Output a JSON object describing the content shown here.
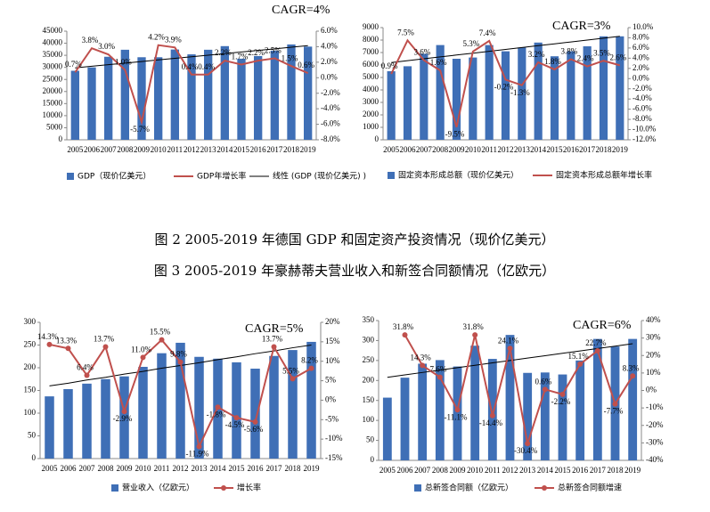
{
  "captions": [
    "图 2 2005-2019 年德国 GDP 和固定资产投资情况（现价亿美元）",
    "图 3 2005-2019 年豪赫蒂夫营业收入和新签合同额情况（亿欧元）"
  ],
  "chart_data": [
    {
      "type": "combo",
      "annotation": "CAGR=4%",
      "categories": [
        "2005",
        "2006",
        "2007",
        "2008",
        "2009",
        "2010",
        "2011",
        "2012",
        "2013",
        "2014",
        "2015",
        "2016",
        "2017",
        "2018",
        "2019"
      ],
      "ylim": [
        0,
        45000
      ],
      "yticks": [
        0,
        5000,
        10000,
        15000,
        20000,
        25000,
        30000,
        35000,
        40000,
        45000
      ],
      "y2lim": [
        -8,
        6
      ],
      "y2ticks": [
        {
          "value": -8,
          "label": "-8.0%"
        },
        {
          "value": -6,
          "label": "-6.0%"
        },
        {
          "value": -4,
          "label": "-4.0%"
        },
        {
          "value": -2,
          "label": "-2.0%"
        },
        {
          "value": 0,
          "label": "0.0%"
        },
        {
          "value": 2,
          "label": "2.0%"
        },
        {
          "value": 4,
          "label": "4.0%"
        },
        {
          "value": 6,
          "label": "6.0%"
        }
      ],
      "markers": false,
      "series": [
        {
          "name": "GDP（现价亿美元）",
          "type": "bar",
          "color": "#3f6fb6",
          "values": [
            28600,
            30000,
            34400,
            37300,
            34200,
            34200,
            37400,
            35400,
            37300,
            38800,
            33600,
            34700,
            36900,
            39500,
            38600
          ]
        },
        {
          "name": "GDP年增长率",
          "type": "line",
          "axis": "y2",
          "color": "#c0504d",
          "values": [
            0.7,
            3.8,
            3.0,
            1.0,
            -5.7,
            4.2,
            3.9,
            0.4,
            0.4,
            2.2,
            1.7,
            2.2,
            2.5,
            1.5,
            0.6
          ],
          "value_labels": [
            "0.7%",
            "3.8%",
            "3.0%",
            "1.0%",
            "-5.7%",
            "4.2%",
            "3.9%",
            "0.4%",
            "0.4%",
            "2.2%",
            "1.7%",
            "2.2%",
            "2.5%",
            "1.5%",
            "0.6%"
          ]
        }
      ],
      "trendline": {
        "name": "线性 (GDP (现价亿美元) )",
        "color": "#000000",
        "values": [
          29800,
          30460,
          31110,
          31770,
          32430,
          33090,
          33740,
          34400,
          35060,
          35710,
          36370,
          37030,
          37690,
          38340,
          39000
        ]
      }
    },
    {
      "type": "combo",
      "annotation": "CAGR=3%",
      "categories": [
        "2005",
        "2006",
        "2007",
        "2008",
        "2009",
        "2010",
        "2011",
        "2012",
        "2013",
        "2014",
        "2015",
        "2016",
        "2017",
        "2018",
        "2019"
      ],
      "ylim": [
        0,
        9000
      ],
      "yticks": [
        0,
        1000,
        2000,
        3000,
        4000,
        5000,
        6000,
        7000,
        8000,
        9000
      ],
      "y2lim": [
        -12,
        10
      ],
      "y2ticks": [
        {
          "value": -12,
          "label": "-12.0%"
        },
        {
          "value": -10,
          "label": "-10.0%"
        },
        {
          "value": -8,
          "label": "-8.0%"
        },
        {
          "value": -6,
          "label": "-6.0%"
        },
        {
          "value": -4,
          "label": "-4.0%"
        },
        {
          "value": -2,
          "label": "-2.0%"
        },
        {
          "value": 0,
          "label": "0.0%"
        },
        {
          "value": 2,
          "label": "2.0%"
        },
        {
          "value": 4,
          "label": "4.0%"
        },
        {
          "value": 6,
          "label": "6.0%"
        },
        {
          "value": 8,
          "label": "8.0%"
        },
        {
          "value": 10,
          "label": "10.0%"
        }
      ],
      "markers": false,
      "series": [
        {
          "name": "固定资本形成总额（现价亿美元）",
          "type": "bar",
          "color": "#3f6fb6",
          "values": [
            5500,
            5900,
            6900,
            7600,
            6500,
            6600,
            7600,
            7100,
            7400,
            7800,
            6700,
            7100,
            7500,
            8300,
            8300
          ]
        },
        {
          "name": "固定资本形成总额年增长率",
          "type": "line",
          "axis": "y2",
          "color": "#c0504d",
          "values": [
            0.9,
            7.5,
            3.6,
            1.6,
            -9.5,
            5.3,
            7.4,
            -0.2,
            -1.3,
            3.2,
            1.8,
            3.8,
            2.4,
            3.5,
            2.6
          ],
          "value_labels": [
            "0.9%",
            "7.5%",
            "3.6%",
            "1.6%",
            "-9.5%",
            "5.3%",
            "7.4%",
            "-0.2%",
            "-1.3%",
            "3.2%",
            "1.8%",
            "3.8%",
            "2.4%",
            "3.5%",
            "2.6%"
          ]
        }
      ],
      "trendline": {
        "color": "#000000",
        "values": [
          6200,
          6350,
          6500,
          6650,
          6800,
          6950,
          7100,
          7250,
          7400,
          7550,
          7700,
          7850,
          8000,
          8150,
          8300
        ]
      }
    },
    {
      "type": "combo",
      "annotation": "CAGR=5%",
      "categories": [
        "2005",
        "2006",
        "2007",
        "2008",
        "2009",
        "2010",
        "2011",
        "2012",
        "2013",
        "2014",
        "2015",
        "2016",
        "2017",
        "2018",
        "2019"
      ],
      "ylim": [
        0,
        300
      ],
      "yticks": [
        0,
        50,
        100,
        150,
        200,
        250,
        300
      ],
      "y2lim": [
        -15,
        20
      ],
      "y2ticks": [
        {
          "value": -15,
          "label": "-15%"
        },
        {
          "value": -10,
          "label": "-10%"
        },
        {
          "value": -5,
          "label": "-5%"
        },
        {
          "value": 0,
          "label": "0%"
        },
        {
          "value": 5,
          "label": "5%"
        },
        {
          "value": 10,
          "label": "10%"
        },
        {
          "value": 15,
          "label": "15%"
        },
        {
          "value": 20,
          "label": "20%"
        }
      ],
      "markers": true,
      "series": [
        {
          "name": "营业收入（亿欧元）",
          "type": "bar",
          "color": "#3f6fb6",
          "values": [
            137,
            153,
            165,
            175,
            181,
            202,
            232,
            255,
            224,
            220,
            212,
            198,
            226,
            239,
            257
          ]
        },
        {
          "name": "增长率",
          "type": "line",
          "axis": "y2",
          "color": "#c0504d",
          "values": [
            14.3,
            13.3,
            6.4,
            13.7,
            -2.9,
            11.0,
            15.5,
            9.8,
            -11.9,
            -1.8,
            -4.5,
            -5.6,
            13.7,
            5.5,
            8.2
          ],
          "value_labels": [
            "14.3%",
            "13.3%",
            "6.4%",
            "13.7%",
            "-2.9%",
            "11.0%",
            "15.5%",
            "9.8%",
            "-11.9%",
            "-1.8%",
            "-4.5%",
            "-5.6%",
            "13.7%",
            "5.5%",
            "8.2%"
          ]
        }
      ],
      "trendline": {
        "color": "#000000",
        "values": [
          160,
          166,
          173,
          179,
          186,
          192,
          199,
          205,
          211,
          218,
          224,
          231,
          237,
          244,
          250
        ]
      }
    },
    {
      "type": "combo",
      "annotation": "CAGR=6%",
      "categories": [
        "2005",
        "2006",
        "2007",
        "2008",
        "2009",
        "2010",
        "2011",
        "2012",
        "2013",
        "2014",
        "2015",
        "2016",
        "2017",
        "2018",
        "2019"
      ],
      "ylim": [
        0,
        350
      ],
      "yticks": [
        0,
        50,
        100,
        150,
        200,
        250,
        300,
        350
      ],
      "y2lim": [
        -40,
        40
      ],
      "y2ticks": [
        {
          "value": -40,
          "label": "-40%"
        },
        {
          "value": -30,
          "label": "-30%"
        },
        {
          "value": -20,
          "label": "-20%"
        },
        {
          "value": -10,
          "label": "-10%"
        },
        {
          "value": 0,
          "label": "0%"
        },
        {
          "value": 10,
          "label": "10%"
        },
        {
          "value": 20,
          "label": "20%"
        },
        {
          "value": 30,
          "label": "30%"
        },
        {
          "value": 40,
          "label": "40%"
        }
      ],
      "markers": true,
      "series": [
        {
          "name": "总新签合同额（亿欧元）",
          "type": "bar",
          "color": "#3f6fb6",
          "values": [
            157,
            207,
            242,
            251,
            235,
            287,
            254,
            314,
            219,
            220,
            215,
            250,
            304,
            285,
            304
          ]
        },
        {
          "name": "总新签合同额增速",
          "type": "line",
          "axis": "y2",
          "color": "#c0504d",
          "values": [
            null,
            31.8,
            14.3,
            7.6,
            -11.1,
            31.8,
            -14.4,
            24.1,
            -30.4,
            0.6,
            -2.2,
            15.1,
            22.7,
            -7.7,
            8.3
          ],
          "value_labels": [
            null,
            "31.8%",
            "14.3%",
            "7.6%",
            "-11.1%",
            "31.8%",
            "-14.4%",
            "24.1%",
            "-30.4%",
            "0.6%",
            "-2.2%",
            "15.1%",
            "22.7%",
            "-7.7%",
            "8.3%"
          ]
        }
      ],
      "trendline": {
        "color": "#000000",
        "values": [
          208,
          214,
          220,
          226,
          232,
          238,
          244,
          250,
          256,
          262,
          268,
          274,
          280,
          286,
          292
        ]
      }
    }
  ]
}
